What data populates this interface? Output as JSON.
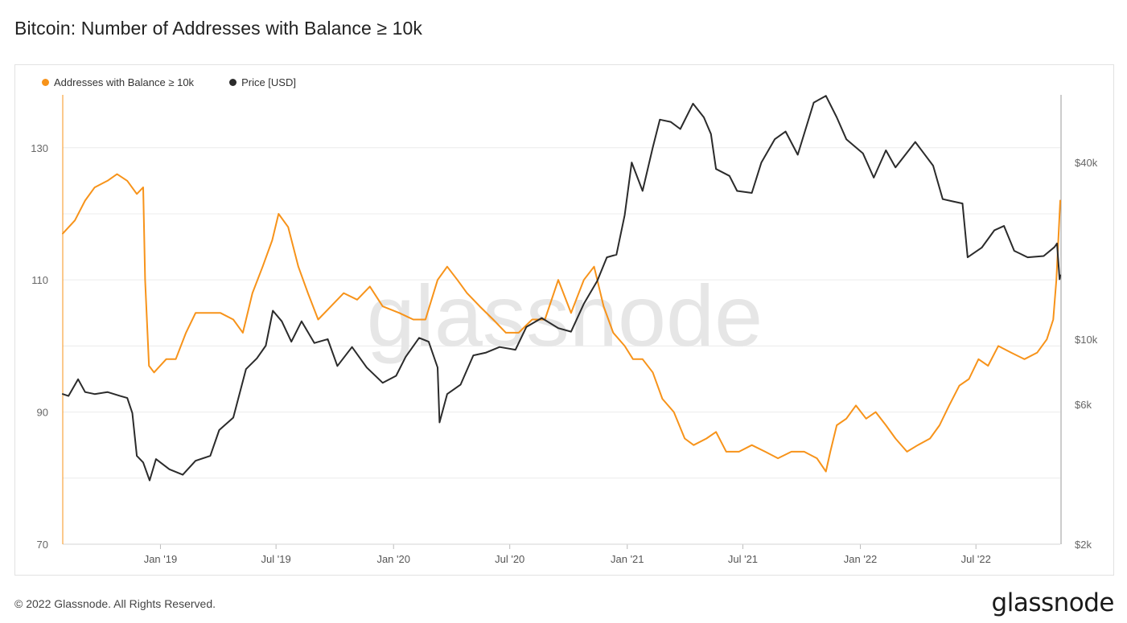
{
  "page_title": "Bitcoin: Number of Addresses with Balance ≥ 10k",
  "footer": "© 2022 Glassnode. All Rights Reserved.",
  "brand": "glassnode",
  "watermark": "glassnode",
  "chart_data": {
    "type": "line",
    "title": "Bitcoin: Number of Addresses with Balance ≥ 10k",
    "legend_position": "top-left",
    "grid": true,
    "x_tick_labels": [
      "Jan '19",
      "Jul '19",
      "Jan '20",
      "Jul '20",
      "Jan '21",
      "Jul '21",
      "Jan '22",
      "Jul '22"
    ],
    "x_range": [
      "2018-08-01",
      "2022-11-10"
    ],
    "y_left": {
      "ticks": [
        "70",
        "90",
        "110",
        "130"
      ],
      "range": [
        70,
        138
      ]
    },
    "y_right": {
      "scale": "log",
      "ticks": [
        "$2k",
        "$6k",
        "$10k",
        "$40k"
      ],
      "range": [
        2000,
        68000
      ]
    },
    "series": [
      {
        "name": "Addresses with Balance ≥ 10k",
        "color": "#f7931a",
        "axis": "left",
        "points": [
          [
            "2018-08-01",
            117
          ],
          [
            "2018-08-20",
            119
          ],
          [
            "2018-09-05",
            122
          ],
          [
            "2018-09-20",
            124
          ],
          [
            "2018-10-10",
            125
          ],
          [
            "2018-10-25",
            126
          ],
          [
            "2018-11-10",
            125
          ],
          [
            "2018-11-25",
            123
          ],
          [
            "2018-12-05",
            124
          ],
          [
            "2018-12-08",
            110
          ],
          [
            "2018-12-14",
            97
          ],
          [
            "2018-12-22",
            96
          ],
          [
            "2019-01-10",
            98
          ],
          [
            "2019-01-25",
            98
          ],
          [
            "2019-02-10",
            102
          ],
          [
            "2019-02-25",
            105
          ],
          [
            "2019-03-15",
            105
          ],
          [
            "2019-04-05",
            105
          ],
          [
            "2019-04-25",
            104
          ],
          [
            "2019-05-10",
            102
          ],
          [
            "2019-05-25",
            108
          ],
          [
            "2019-06-10",
            112
          ],
          [
            "2019-06-25",
            116
          ],
          [
            "2019-07-05",
            120
          ],
          [
            "2019-07-20",
            118
          ],
          [
            "2019-08-05",
            112
          ],
          [
            "2019-08-20",
            108
          ],
          [
            "2019-09-05",
            104
          ],
          [
            "2019-09-25",
            106
          ],
          [
            "2019-10-15",
            108
          ],
          [
            "2019-11-05",
            107
          ],
          [
            "2019-11-25",
            109
          ],
          [
            "2019-12-15",
            106
          ],
          [
            "2020-01-10",
            105
          ],
          [
            "2020-02-01",
            104
          ],
          [
            "2020-02-20",
            104
          ],
          [
            "2020-03-10",
            110
          ],
          [
            "2020-03-25",
            112
          ],
          [
            "2020-04-10",
            110
          ],
          [
            "2020-04-25",
            108
          ],
          [
            "2020-05-15",
            106
          ],
          [
            "2020-06-05",
            104
          ],
          [
            "2020-06-25",
            102
          ],
          [
            "2020-07-15",
            102
          ],
          [
            "2020-08-05",
            104
          ],
          [
            "2020-08-25",
            104
          ],
          [
            "2020-09-15",
            110
          ],
          [
            "2020-10-05",
            105
          ],
          [
            "2020-10-25",
            110
          ],
          [
            "2020-11-10",
            112
          ],
          [
            "2020-11-25",
            106
          ],
          [
            "2020-12-10",
            102
          ],
          [
            "2020-12-28",
            100
          ],
          [
            "2021-01-10",
            98
          ],
          [
            "2021-01-25",
            98
          ],
          [
            "2021-02-10",
            96
          ],
          [
            "2021-02-25",
            92
          ],
          [
            "2021-03-15",
            90
          ],
          [
            "2021-04-01",
            86
          ],
          [
            "2021-04-15",
            85
          ],
          [
            "2021-05-05",
            86
          ],
          [
            "2021-05-20",
            87
          ],
          [
            "2021-06-05",
            84
          ],
          [
            "2021-06-25",
            84
          ],
          [
            "2021-07-15",
            85
          ],
          [
            "2021-08-05",
            84
          ],
          [
            "2021-08-25",
            83
          ],
          [
            "2021-09-15",
            84
          ],
          [
            "2021-10-05",
            84
          ],
          [
            "2021-10-25",
            83
          ],
          [
            "2021-11-08",
            81
          ],
          [
            "2021-11-15",
            84
          ],
          [
            "2021-11-25",
            88
          ],
          [
            "2021-12-10",
            89
          ],
          [
            "2021-12-25",
            91
          ],
          [
            "2022-01-10",
            89
          ],
          [
            "2022-01-25",
            90
          ],
          [
            "2022-02-10",
            88
          ],
          [
            "2022-02-25",
            86
          ],
          [
            "2022-03-15",
            84
          ],
          [
            "2022-04-01",
            85
          ],
          [
            "2022-04-20",
            86
          ],
          [
            "2022-05-05",
            88
          ],
          [
            "2022-05-20",
            91
          ],
          [
            "2022-06-05",
            94
          ],
          [
            "2022-06-20",
            95
          ],
          [
            "2022-07-05",
            98
          ],
          [
            "2022-07-20",
            97
          ],
          [
            "2022-08-05",
            100
          ],
          [
            "2022-08-25",
            99
          ],
          [
            "2022-09-15",
            98
          ],
          [
            "2022-10-05",
            99
          ],
          [
            "2022-10-20",
            101
          ],
          [
            "2022-10-30",
            104
          ],
          [
            "2022-11-04",
            110
          ],
          [
            "2022-11-08",
            118
          ],
          [
            "2022-11-10",
            122
          ]
        ]
      },
      {
        "name": "Price [USD]",
        "color": "#2b2b2b",
        "axis": "right",
        "points": [
          [
            "2018-08-01",
            6500
          ],
          [
            "2018-08-10",
            6400
          ],
          [
            "2018-08-25",
            7300
          ],
          [
            "2018-09-05",
            6600
          ],
          [
            "2018-09-20",
            6500
          ],
          [
            "2018-10-10",
            6600
          ],
          [
            "2018-10-30",
            6400
          ],
          [
            "2018-11-10",
            6300
          ],
          [
            "2018-11-18",
            5600
          ],
          [
            "2018-11-25",
            4000
          ],
          [
            "2018-12-05",
            3800
          ],
          [
            "2018-12-15",
            3300
          ],
          [
            "2018-12-25",
            3900
          ],
          [
            "2019-01-15",
            3600
          ],
          [
            "2019-02-05",
            3450
          ],
          [
            "2019-02-25",
            3850
          ],
          [
            "2019-03-20",
            4000
          ],
          [
            "2019-04-03",
            4900
          ],
          [
            "2019-04-25",
            5400
          ],
          [
            "2019-05-15",
            7900
          ],
          [
            "2019-06-01",
            8600
          ],
          [
            "2019-06-15",
            9500
          ],
          [
            "2019-06-26",
            12500
          ],
          [
            "2019-07-10",
            11500
          ],
          [
            "2019-07-25",
            9800
          ],
          [
            "2019-08-10",
            11500
          ],
          [
            "2019-08-30",
            9700
          ],
          [
            "2019-09-20",
            10000
          ],
          [
            "2019-10-05",
            8100
          ],
          [
            "2019-10-28",
            9400
          ],
          [
            "2019-11-20",
            8000
          ],
          [
            "2019-12-15",
            7100
          ],
          [
            "2020-01-05",
            7500
          ],
          [
            "2020-01-20",
            8700
          ],
          [
            "2020-02-10",
            10100
          ],
          [
            "2020-02-25",
            9800
          ],
          [
            "2020-03-10",
            8000
          ],
          [
            "2020-03-13",
            5200
          ],
          [
            "2020-03-25",
            6500
          ],
          [
            "2020-04-15",
            7000
          ],
          [
            "2020-05-05",
            8800
          ],
          [
            "2020-05-25",
            9000
          ],
          [
            "2020-06-15",
            9400
          ],
          [
            "2020-07-10",
            9200
          ],
          [
            "2020-07-27",
            11000
          ],
          [
            "2020-08-20",
            11800
          ],
          [
            "2020-09-15",
            10900
          ],
          [
            "2020-10-05",
            10600
          ],
          [
            "2020-10-25",
            13200
          ],
          [
            "2020-11-15",
            15800
          ],
          [
            "2020-11-30",
            19000
          ],
          [
            "2020-12-15",
            19400
          ],
          [
            "2020-12-28",
            26500
          ],
          [
            "2021-01-08",
            40000
          ],
          [
            "2021-01-25",
            32000
          ],
          [
            "2021-02-10",
            45000
          ],
          [
            "2021-02-21",
            56000
          ],
          [
            "2021-03-10",
            55000
          ],
          [
            "2021-03-25",
            52000
          ],
          [
            "2021-04-14",
            63500
          ],
          [
            "2021-05-01",
            57000
          ],
          [
            "2021-05-12",
            50000
          ],
          [
            "2021-05-20",
            38000
          ],
          [
            "2021-06-10",
            36000
          ],
          [
            "2021-06-22",
            32000
          ],
          [
            "2021-07-15",
            31500
          ],
          [
            "2021-07-30",
            40000
          ],
          [
            "2021-08-20",
            48000
          ],
          [
            "2021-09-06",
            51000
          ],
          [
            "2021-09-25",
            42500
          ],
          [
            "2021-10-20",
            64000
          ],
          [
            "2021-11-08",
            67500
          ],
          [
            "2021-11-25",
            57000
          ],
          [
            "2021-12-10",
            48000
          ],
          [
            "2022-01-05",
            43000
          ],
          [
            "2022-01-22",
            35500
          ],
          [
            "2022-02-10",
            44000
          ],
          [
            "2022-02-25",
            38500
          ],
          [
            "2022-03-28",
            47000
          ],
          [
            "2022-04-25",
            39000
          ],
          [
            "2022-05-10",
            30000
          ],
          [
            "2022-05-25",
            29500
          ],
          [
            "2022-06-10",
            29000
          ],
          [
            "2022-06-18",
            19000
          ],
          [
            "2022-07-10",
            20500
          ],
          [
            "2022-07-30",
            23500
          ],
          [
            "2022-08-14",
            24300
          ],
          [
            "2022-08-30",
            20000
          ],
          [
            "2022-09-20",
            19000
          ],
          [
            "2022-10-15",
            19200
          ],
          [
            "2022-11-01",
            20600
          ],
          [
            "2022-11-05",
            21200
          ],
          [
            "2022-11-09",
            16000
          ],
          [
            "2022-11-10",
            16500
          ]
        ]
      }
    ]
  }
}
